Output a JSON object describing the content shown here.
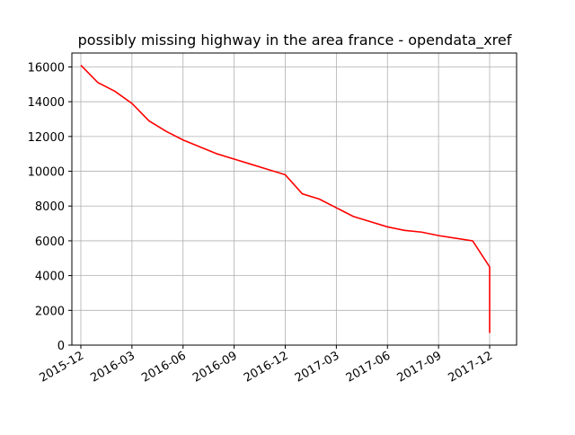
{
  "chart_data": {
    "type": "line",
    "title": "possibly missing highway in the area france - opendata_xref",
    "x": [
      "2015-12",
      "2016-01",
      "2016-02",
      "2016-03",
      "2016-04",
      "2016-05",
      "2016-06",
      "2016-07",
      "2016-08",
      "2016-09",
      "2016-10",
      "2016-11",
      "2016-12",
      "2017-01",
      "2017-02",
      "2017-03",
      "2017-04",
      "2017-05",
      "2017-06",
      "2017-07",
      "2017-08",
      "2017-09",
      "2017-10",
      "2017-11",
      "2017-12",
      "2017-12"
    ],
    "series": [
      {
        "color": "#ff0000",
        "values": [
          16100,
          15100,
          14600,
          13900,
          12900,
          12300,
          11800,
          11400,
          11000,
          10700,
          10400,
          10100,
          9800,
          8700,
          8400,
          7900,
          7400,
          7100,
          6800,
          6600,
          6500,
          6300,
          6150,
          6000,
          4500,
          700
        ]
      }
    ],
    "xticks": [
      "2015-12",
      "2016-03",
      "2016-06",
      "2016-09",
      "2016-12",
      "2017-03",
      "2017-06",
      "2017-09",
      "2017-12"
    ],
    "ylim": [
      0,
      16800
    ],
    "yticks": [
      0,
      2000,
      4000,
      6000,
      8000,
      10000,
      12000,
      14000,
      16000
    ],
    "grid": true
  }
}
